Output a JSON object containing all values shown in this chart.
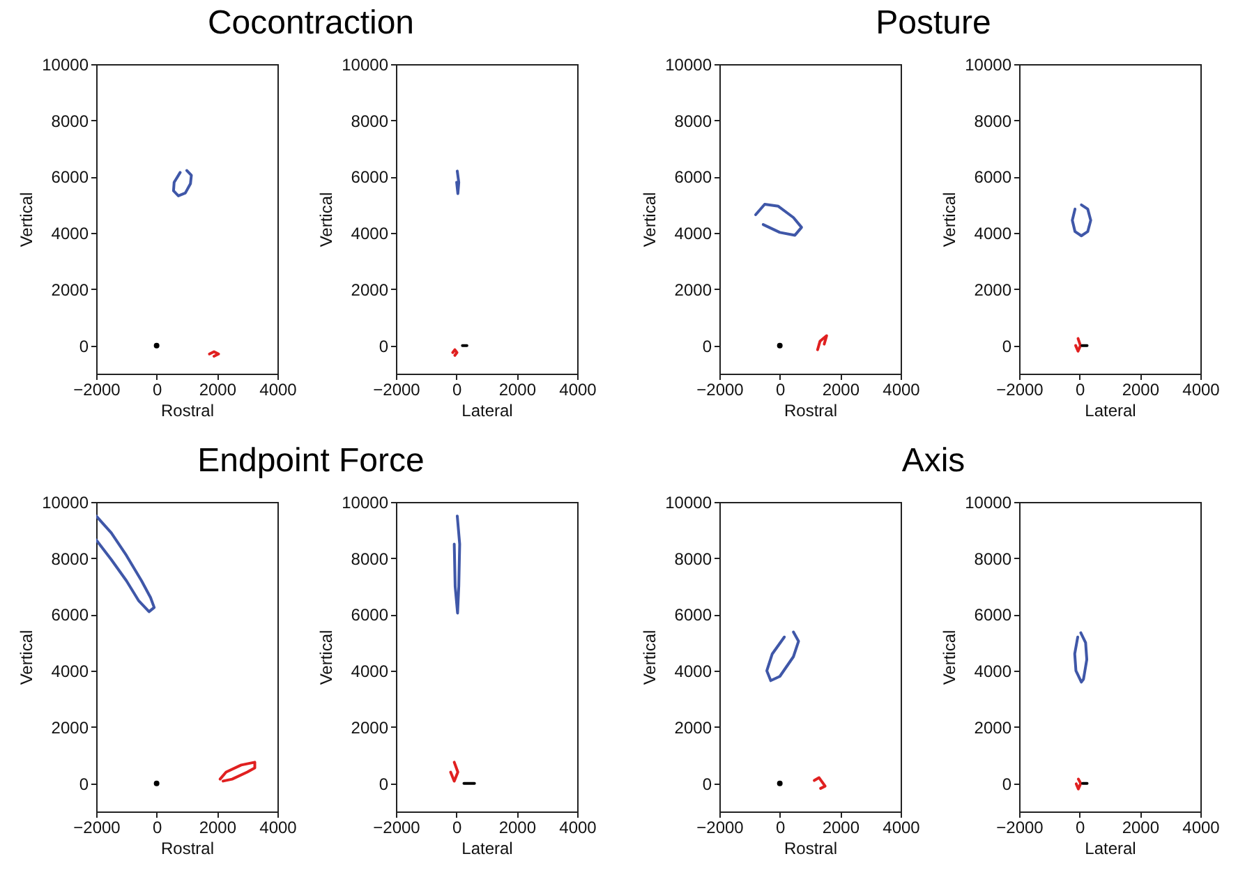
{
  "chart_data": [
    {
      "type": "line",
      "title": "Cocontraction",
      "xlabel": "Rostral",
      "ylabel": "Vertical",
      "xlim": [
        -2000,
        4000
      ],
      "xticks": [
        -2000,
        0,
        2000,
        4000
      ],
      "ylim": [
        -1000,
        10000
      ],
      "yticks": [
        0,
        2000,
        4000,
        6000,
        8000,
        10000
      ],
      "series": [
        {
          "color": "#3f57a8",
          "x": [
            1000,
            1150,
            1120,
            950,
            720,
            560,
            580,
            780
          ],
          "values": [
            6220,
            6050,
            5750,
            5420,
            5320,
            5500,
            5800,
            6150
          ]
        },
        {
          "color": "#e02020",
          "x": [
            1750,
            1900,
            2050,
            1900
          ],
          "values": [
            -300,
            -220,
            -300,
            -380
          ]
        },
        {
          "type": "scatter",
          "color": "#000000",
          "x": [
            0
          ],
          "values": [
            0
          ]
        }
      ]
    },
    {
      "type": "line",
      "xlabel": "Lateral",
      "ylabel": "Vertical",
      "xlim": [
        -2000,
        4000
      ],
      "xticks": [
        -2000,
        0,
        2000,
        4000
      ],
      "ylim": [
        -1000,
        10000
      ],
      "yticks": [
        0,
        2000,
        4000,
        6000,
        8000,
        10000
      ],
      "series": [
        {
          "color": "#3f57a8",
          "x": [
            30,
            80,
            50,
            10
          ],
          "values": [
            6200,
            5800,
            5400,
            5800
          ]
        },
        {
          "color": "#e02020",
          "x": [
            -120,
            -50,
            20,
            -50
          ],
          "values": [
            -250,
            -150,
            -250,
            -350
          ]
        },
        {
          "color": "#000000",
          "x": [
            200,
            350
          ],
          "values": [
            0,
            0
          ]
        }
      ]
    },
    {
      "type": "line",
      "title": "Posture",
      "xlabel": "Rostral",
      "ylabel": "Vertical",
      "xlim": [
        -2000,
        4000
      ],
      "xticks": [
        -2000,
        0,
        2000,
        4000
      ],
      "ylim": [
        -1000,
        10000
      ],
      "yticks": [
        0,
        2000,
        4000,
        6000,
        8000,
        10000
      ],
      "series": [
        {
          "color": "#3f57a8",
          "x": [
            -800,
            -500,
            -50,
            450,
            720,
            500,
            0,
            -550
          ],
          "values": [
            4650,
            5020,
            4950,
            4550,
            4200,
            3920,
            4020,
            4300
          ]
        },
        {
          "color": "#e02020",
          "x": [
            1250,
            1330,
            1550,
            1470
          ],
          "values": [
            -150,
            150,
            350,
            50
          ]
        },
        {
          "type": "scatter",
          "color": "#000000",
          "x": [
            0
          ],
          "values": [
            0
          ]
        }
      ]
    },
    {
      "type": "line",
      "xlabel": "Lateral",
      "ylabel": "Vertical",
      "xlim": [
        -2000,
        4000
      ],
      "xticks": [
        -2000,
        0,
        2000,
        4000
      ],
      "ylim": [
        -1000,
        10000
      ],
      "yticks": [
        0,
        2000,
        4000,
        6000,
        8000,
        10000
      ],
      "series": [
        {
          "color": "#3f57a8",
          "x": [
            60,
            270,
            370,
            270,
            60,
            -150,
            -240,
            -150
          ],
          "values": [
            5000,
            4850,
            4450,
            4050,
            3900,
            4050,
            4450,
            4850
          ]
        },
        {
          "color": "#e02020",
          "x": [
            -50,
            30,
            -50,
            -130
          ],
          "values": [
            250,
            0,
            -200,
            0
          ]
        },
        {
          "color": "#000000",
          "x": [
            80,
            250
          ],
          "values": [
            0,
            0
          ]
        }
      ]
    },
    {
      "type": "line",
      "title": "Endpoint Force",
      "xlabel": "Rostral",
      "ylabel": "Vertical",
      "xlim": [
        -2000,
        4000
      ],
      "xticks": [
        -2000,
        0,
        2000,
        4000
      ],
      "ylim": [
        -1000,
        10000
      ],
      "yticks": [
        0,
        2000,
        4000,
        6000,
        8000,
        10000
      ],
      "series": [
        {
          "color": "#3f57a8",
          "x": [
            -2000,
            -1500,
            -1000,
            -500,
            -200,
            -80,
            -250,
            -600,
            -1000,
            -1500,
            -2000
          ],
          "values": [
            9500,
            8900,
            8100,
            7200,
            6600,
            6250,
            6100,
            6500,
            7200,
            7950,
            8650
          ]
        },
        {
          "color": "#e02020",
          "x": [
            2100,
            2300,
            2800,
            3250,
            3250,
            3000,
            2500,
            2200
          ],
          "values": [
            150,
            400,
            650,
            750,
            550,
            400,
            150,
            80
          ]
        },
        {
          "type": "scatter",
          "color": "#000000",
          "x": [
            0
          ],
          "values": [
            0
          ]
        }
      ]
    },
    {
      "type": "line",
      "xlabel": "Lateral",
      "ylabel": "Vertical",
      "xlim": [
        -2000,
        4000
      ],
      "xticks": [
        -2000,
        0,
        2000,
        4000
      ],
      "ylim": [
        -1000,
        10000
      ],
      "yticks": [
        0,
        2000,
        4000,
        6000,
        8000,
        10000
      ],
      "series": [
        {
          "color": "#3f57a8",
          "x": [
            30,
            110,
            80,
            40,
            -40,
            -70
          ],
          "values": [
            9500,
            8500,
            7000,
            6050,
            7000,
            8500
          ]
        },
        {
          "color": "#e02020",
          "x": [
            -70,
            50,
            -70,
            -190
          ],
          "values": [
            750,
            400,
            80,
            400
          ]
        },
        {
          "color": "#000000",
          "x": [
            250,
            600
          ],
          "values": [
            0,
            0
          ]
        }
      ]
    },
    {
      "type": "line",
      "title": "Axis",
      "xlabel": "Rostral",
      "ylabel": "Vertical",
      "xlim": [
        -2000,
        4000
      ],
      "xticks": [
        -2000,
        0,
        2000,
        4000
      ],
      "ylim": [
        -1000,
        10000
      ],
      "yticks": [
        0,
        2000,
        4000,
        6000,
        8000,
        10000
      ],
      "series": [
        {
          "color": "#3f57a8",
          "x": [
            450,
            620,
            450,
            0,
            -300,
            -430,
            -250,
            150
          ],
          "values": [
            5380,
            5050,
            4500,
            3800,
            3650,
            4000,
            4600,
            5200
          ]
        },
        {
          "color": "#e02020",
          "x": [
            1140,
            1300,
            1500,
            1350
          ],
          "values": [
            100,
            200,
            -100,
            -180
          ]
        },
        {
          "type": "scatter",
          "color": "#000000",
          "x": [
            0
          ],
          "values": [
            0
          ]
        }
      ]
    },
    {
      "type": "line",
      "xlabel": "Lateral",
      "ylabel": "Vertical",
      "xlim": [
        -2000,
        4000
      ],
      "xticks": [
        -2000,
        0,
        2000,
        4000
      ],
      "ylim": [
        -1000,
        10000
      ],
      "yticks": [
        0,
        2000,
        4000,
        6000,
        8000,
        10000
      ],
      "series": [
        {
          "color": "#3f57a8",
          "x": [
            40,
            200,
            240,
            130,
            60,
            -120,
            -160,
            -60
          ],
          "values": [
            5350,
            5000,
            4400,
            3700,
            3600,
            4000,
            4600,
            5200
          ]
        },
        {
          "color": "#e02020",
          "x": [
            -40,
            40,
            -40,
            -110
          ],
          "values": [
            150,
            0,
            -200,
            -20
          ]
        },
        {
          "color": "#000000",
          "x": [
            100,
            250
          ],
          "values": [
            0,
            0
          ]
        }
      ]
    }
  ]
}
